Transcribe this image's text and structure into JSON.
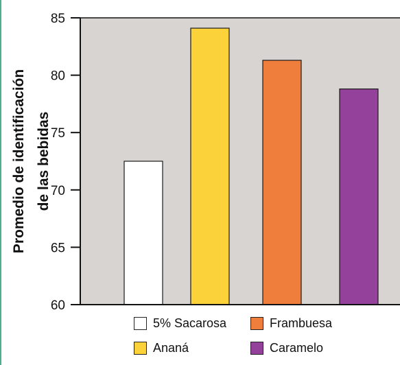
{
  "chart_data": {
    "type": "bar",
    "ylabel": [
      "Promedio de identificación",
      "de las bebidas"
    ],
    "ylim": [
      60,
      85
    ],
    "yticks": [
      60,
      65,
      70,
      75,
      80,
      85
    ],
    "grid": false,
    "background_color": "#d8d4d2",
    "legend_position": "bottom",
    "series": [
      {
        "name": "5% Sacarosa",
        "value": 72.5,
        "color": "#ffffff"
      },
      {
        "name": "Ananá",
        "value": 84.1,
        "color": "#fcd23b"
      },
      {
        "name": "Frambuesa",
        "value": 81.3,
        "color": "#ef7d3c"
      },
      {
        "name": "Caramelo",
        "value": 78.8,
        "color": "#93419b"
      }
    ]
  }
}
